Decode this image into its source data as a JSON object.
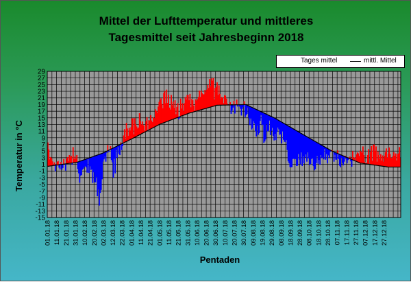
{
  "chart_data": {
    "type": "area",
    "title_line1": "Mittel der Lufttemperatur und mittleres",
    "title_line2": "Tagesmittel seit Jahresbeginn 2018",
    "xlabel": "Pentaden",
    "ylabel": "Temperatur in °C",
    "ylim": [
      -15,
      29
    ],
    "y_ticks": [
      29,
      27,
      25,
      23,
      21,
      19,
      17,
      15,
      13,
      11,
      9,
      7,
      5,
      3,
      1,
      -1,
      -3,
      -5,
      -7,
      -9,
      -11,
      -13,
      -15
    ],
    "x_tick_labels": [
      "01.01.18",
      "11.01.18",
      "21.01.18",
      "31.01.18",
      "10.02.18",
      "20.02.18",
      "02.03.18",
      "12.03.18",
      "22.03.18",
      "01.04.18",
      "11.04.18",
      "21.04.18",
      "01.05.18",
      "11.05.18",
      "21.05.18",
      "31.05.18",
      "10.06.18",
      "20.06.18",
      "30.06.18",
      "10.07.18",
      "20.07.18",
      "30.07.18",
      "09.08.18",
      "19.08.18",
      "29.08.18",
      "08.09.18",
      "18.09.18",
      "28.09.18",
      "08.10.18",
      "18.10.18",
      "28.10.18",
      "07.11.18",
      "17.11.18",
      "27.11.18",
      "07.12.18",
      "17.12.18",
      "27.12.18"
    ],
    "grid": true,
    "legend_position": "top-right",
    "series": [
      {
        "name": "Tages mittel",
        "kind": "daily",
        "color_above": "#ff0000",
        "color_below": "#0000ff",
        "values": [
          7.6,
          5.5,
          2.5,
          3.2,
          2.8,
          1.9,
          0.5,
          1.6,
          -1.1,
          0.5,
          1.8,
          2.0,
          0.0,
          -0.5,
          1.7,
          -0.6,
          -0.1,
          2.6,
          1.2,
          -0.9,
          2.7,
          3.2,
          2.0,
          3.8,
          3.2,
          3.6,
          0.9,
          6.2,
          2.6,
          3.4,
          2.7,
          3.8,
          -0.4,
          -1.7,
          -4.5,
          -2.4,
          -2.2,
          -0.6,
          -0.3,
          0.2,
          0.4,
          0.1,
          -1.5,
          2.6,
          -1.6,
          0.4,
          -0.7,
          -0.5,
          -4.6,
          -1.4,
          -4.4,
          -4.4,
          -2.8,
          -8.6,
          -6.6,
          -11.4,
          -7.6,
          -6.7,
          -3.5,
          1.8,
          2.5,
          3.3,
          1.8,
          4.5,
          6.8,
          4.7,
          5.3,
          6.5,
          2.3,
          1.6,
          -3.0,
          2.7,
          -1.7,
          5.3,
          3.0,
          6.2,
          4.2,
          3.8,
          7.6,
          5.3,
          6.5,
          9.7,
          11.6,
          8.7,
          13.5,
          11.8,
          9.6,
          12.0,
          11.2,
          12.2,
          14.8,
          14.9,
          10.0,
          14.9,
          13.1,
          12.4,
          11.8,
          12.1,
          16.4,
          14.1,
          13.0,
          13.9,
          12.8,
          11.1,
          12.7,
          14.0,
          15.2,
          11.1,
          14.3,
          14.2,
          15.8,
          14.2,
          13.7,
          15.2,
          14.9,
          17.6,
          17.1,
          16.6,
          18.4,
          19.8,
          20.4,
          20.9,
          19.2,
          17.9,
          22.5,
          23.1,
          19.4,
          23.5,
          19.5,
          22.0,
          18.1,
          17.5,
          21.9,
          18.8,
          19.9,
          18.0,
          20.3,
          16.1,
          18.3,
          19.4,
          14.6,
          15.0,
          20.8,
          17.8,
          19.4,
          17.0,
          19.4,
          21.3,
          20.5,
          21.9,
          21.9,
          20.3,
          22.2,
          18.2,
          20.7,
          20.3,
          18.7,
          17.2,
          20.6,
          20.2,
          20.6,
          21.3,
          23.2,
          21.3,
          23.2,
          22.4,
          22.1,
          22.1,
          23.4,
          22.7,
          23.5,
          24.9,
          24.0,
          26.7,
          24.5,
          26.9,
          26.2,
          27.0,
          20.6,
          24.0,
          24.4,
          25.7,
          21.9,
          24.8,
          22.2,
          20.8,
          21.3,
          21.1,
          19.4,
          21.8,
          21.7,
          20.8,
          19.3,
          18.8,
          19.0,
          19.7,
          16.2,
          17.2,
          18.1,
          20.1,
          16.3,
          18.9,
          20.5,
          18.4,
          18.8,
          18.4,
          17.7,
          15.7,
          17.7,
          18.3,
          20.0,
          15.2,
          15.8,
          16.2,
          18.1,
          14.9,
          12.8,
          14.8,
          11.5,
          11.9,
          14.0,
          13.3,
          11.0,
          9.4,
          12.7,
          9.9,
          10.4,
          14.1,
          15.8,
          12.8,
          13.0,
          7.5,
          7.9,
          8.5,
          13.1,
          10.9,
          11.1,
          14.2,
          9.8,
          11.1,
          12.0,
          9.6,
          8.2,
          10.2,
          8.3,
          10.8,
          12.1,
          11.5,
          9.9,
          10.1,
          7.3,
          10.9,
          8.4,
          7.8,
          7.7,
          8.3,
          5.3,
          1.9,
          1.3,
          0.2,
          0.1,
          0.2,
          2.6,
          2.7,
          2.5,
          2.6,
          0.5,
          0.6,
          4.1,
          2.4,
          1.0,
          4.6,
          0.5,
          3.4,
          1.3,
          3.1,
          4.0,
          1.8,
          4.6,
          2.8,
          0.8,
          1.1,
          2.6,
          2.8,
          0.5,
          -0.8,
          -0.4,
          1.4,
          3.5,
          1.2,
          2.3,
          0.9,
          3.8,
          2.9,
          3.2,
          2.5,
          5.6,
          2.4,
          4.1,
          1.3,
          3.7,
          3.0,
          4.8,
          5.2,
          5.3,
          4.8,
          1.8,
          3.9,
          2.4,
          2.4,
          5.2,
          2.6,
          0.6,
          0.1,
          2.9,
          1.4,
          0.7,
          1.8,
          3.6,
          2.5,
          1.3,
          2.3,
          2.9,
          3.3,
          1.9,
          0.3,
          5.0,
          2.8,
          3.1,
          2.1,
          4.0,
          4.6,
          4.3,
          3.5,
          5.1,
          4.8,
          4.5,
          6.4,
          3.8,
          1.7,
          1.2,
          1.5,
          3.8,
          5.6,
          1.3,
          4.8,
          6.5,
          2.1,
          6.9,
          7.0,
          5.0,
          6.4,
          1.8,
          4.9,
          3.8,
          2.7,
          4.1,
          2.1,
          3.7,
          1.8,
          3.5,
          4.7,
          5.8,
          3.0,
          4.2,
          6.1,
          4.1,
          3.0,
          2.8,
          3.5,
          4.7,
          3.6,
          4.3,
          2.2,
          4.1,
          4.3,
          6.2,
          2.9
        ]
      },
      {
        "name": "mittl. Mittel",
        "kind": "longterm",
        "color": "#000000",
        "anchor_days": [
          1,
          32,
          60,
          91,
          121,
          152,
          182,
          213,
          244,
          274,
          305,
          335,
          365
        ],
        "anchor_values": [
          0.4,
          1.6,
          4.4,
          8.7,
          13.1,
          16.4,
          18.8,
          19.0,
          14.9,
          10.0,
          5.0,
          1.4,
          0.2
        ]
      }
    ]
  }
}
